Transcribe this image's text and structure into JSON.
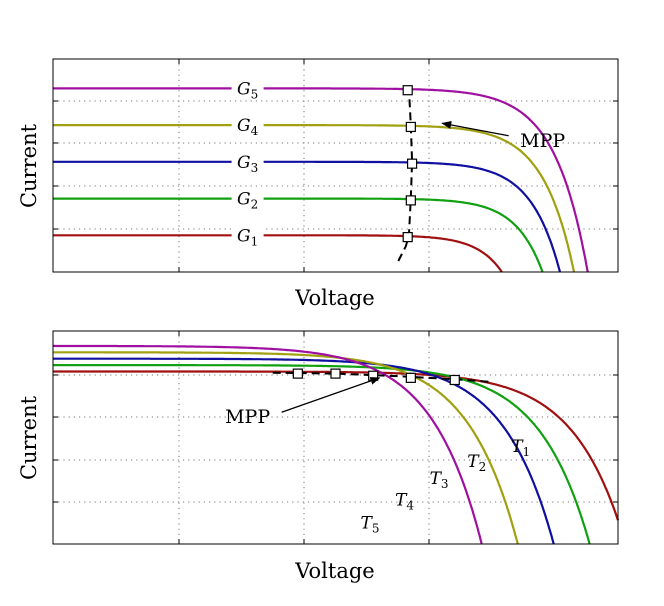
{
  "chart_data": [
    {
      "type": "line",
      "title": "",
      "xlabel": "Voltage",
      "ylabel": "Current",
      "xlim": [
        0,
        9
      ],
      "ylim": [
        0,
        5.8
      ],
      "grid": true,
      "colors": [
        "#a01010",
        "#10a010",
        "#1010a0",
        "#a0a010",
        "#a010a0"
      ],
      "series": [
        {
          "name": "G",
          "subscript": "1",
          "label_x": 3.1,
          "isc": 1.0,
          "vf": 7.15,
          "a": 0.4
        },
        {
          "name": "G",
          "subscript": "2",
          "label_x": 3.1,
          "isc": 2.0,
          "vf": 7.5,
          "a": 0.43
        },
        {
          "name": "G",
          "subscript": "3",
          "label_x": 3.1,
          "isc": 3.0,
          "vf": 7.57,
          "a": 0.46
        },
        {
          "name": "G",
          "subscript": "4",
          "label_x": 3.1,
          "isc": 4.0,
          "vf": 7.62,
          "a": 0.49
        },
        {
          "name": "G",
          "subscript": "5",
          "label_x": 3.1,
          "isc": 5.0,
          "vf": 7.68,
          "a": 0.52
        }
      ],
      "mpp": {
        "label": "MPP",
        "label_pos": [
          7.8,
          3.6
        ],
        "arrow_to": [
          6.2,
          4.05
        ],
        "points": [
          [
            5.65,
            0.95
          ],
          [
            5.7,
            1.95
          ],
          [
            5.72,
            2.95
          ],
          [
            5.7,
            3.95
          ],
          [
            5.65,
            4.95
          ]
        ],
        "dash_path": [
          [
            5.5,
            0.3
          ],
          [
            5.62,
            0.7
          ],
          [
            5.67,
            1.0
          ],
          [
            5.7,
            2.0
          ],
          [
            5.72,
            3.0
          ],
          [
            5.7,
            4.0
          ],
          [
            5.67,
            5.0
          ]
        ]
      }
    },
    {
      "type": "line",
      "title": "",
      "xlabel": "Voltage",
      "ylabel": "Current",
      "xlim": [
        0,
        9
      ],
      "ylim": [
        0,
        5
      ],
      "grid": true,
      "colors": [
        "#a01010",
        "#10a010",
        "#1010a0",
        "#a0a010",
        "#a010a0"
      ],
      "series": [
        {
          "name": "T",
          "subscript": "1",
          "isc": 4.05,
          "vf": 8.0,
          "a": 0.8,
          "label_pos": [
            7.45,
            2.3
          ]
        },
        {
          "name": "T",
          "subscript": "2",
          "isc": 4.2,
          "vf": 7.4,
          "a": 0.8,
          "label_pos": [
            6.75,
            1.95
          ]
        },
        {
          "name": "T",
          "subscript": "3",
          "isc": 4.35,
          "vf": 6.8,
          "a": 0.8,
          "label_pos": [
            6.15,
            1.55
          ]
        },
        {
          "name": "T",
          "subscript": "4",
          "isc": 4.5,
          "vf": 6.2,
          "a": 0.8,
          "label_pos": [
            5.6,
            1.05
          ]
        },
        {
          "name": "T",
          "subscript": "5",
          "isc": 4.65,
          "vf": 5.6,
          "a": 0.8,
          "label_pos": [
            5.05,
            0.5
          ]
        }
      ],
      "mpp": {
        "label": "MPP",
        "label_pos": [
          3.1,
          3.0
        ],
        "arrow_to": [
          5.2,
          3.9
        ],
        "points": [
          [
            3.9,
            4.0
          ],
          [
            4.5,
            4.0
          ],
          [
            5.1,
            3.95
          ],
          [
            5.7,
            3.9
          ],
          [
            6.4,
            3.85
          ]
        ],
        "dash_path": [
          [
            3.5,
            4.02
          ],
          [
            4.5,
            4.0
          ],
          [
            5.5,
            3.94
          ],
          [
            6.5,
            3.86
          ],
          [
            7.0,
            3.8
          ]
        ]
      }
    }
  ]
}
